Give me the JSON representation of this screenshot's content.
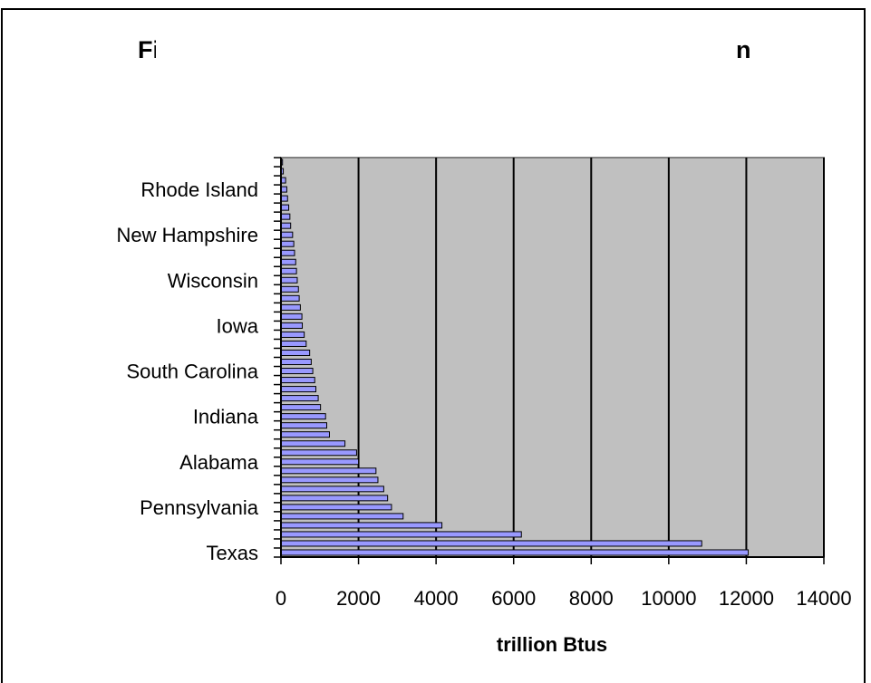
{
  "chart_data": {
    "type": "bar",
    "orientation": "horizontal",
    "title_fragments": [
      "Fi",
      "n"
    ],
    "xlabel": "trillion Btus",
    "ylabel": "",
    "xlim": [
      0,
      14000
    ],
    "x_ticks": [
      "0",
      "2000",
      "4000",
      "6000",
      "8000",
      "10000",
      "12000",
      "14000"
    ],
    "grid": "vertical",
    "plot_background": "#c0c0c0",
    "bar_color": "#9999ff",
    "visible_category_labels": [
      "Texas",
      "Pennsylvania",
      "Alabama",
      "Indiana",
      "South Carolina",
      "Iowa",
      "Wisconsin",
      "New Hampshire",
      "Rhode Island"
    ],
    "labeled_bar_positions": [
      0,
      5,
      10,
      15,
      20,
      25,
      30,
      35,
      40
    ],
    "values": [
      12050,
      10850,
      6200,
      4150,
      3150,
      2850,
      2750,
      2650,
      2500,
      2450,
      2000,
      1950,
      1650,
      1250,
      1180,
      1150,
      1020,
      960,
      900,
      870,
      820,
      780,
      740,
      650,
      600,
      550,
      540,
      500,
      470,
      450,
      420,
      400,
      380,
      350,
      330,
      300,
      250,
      230,
      200,
      170,
      150,
      120,
      60,
      40
    ]
  }
}
